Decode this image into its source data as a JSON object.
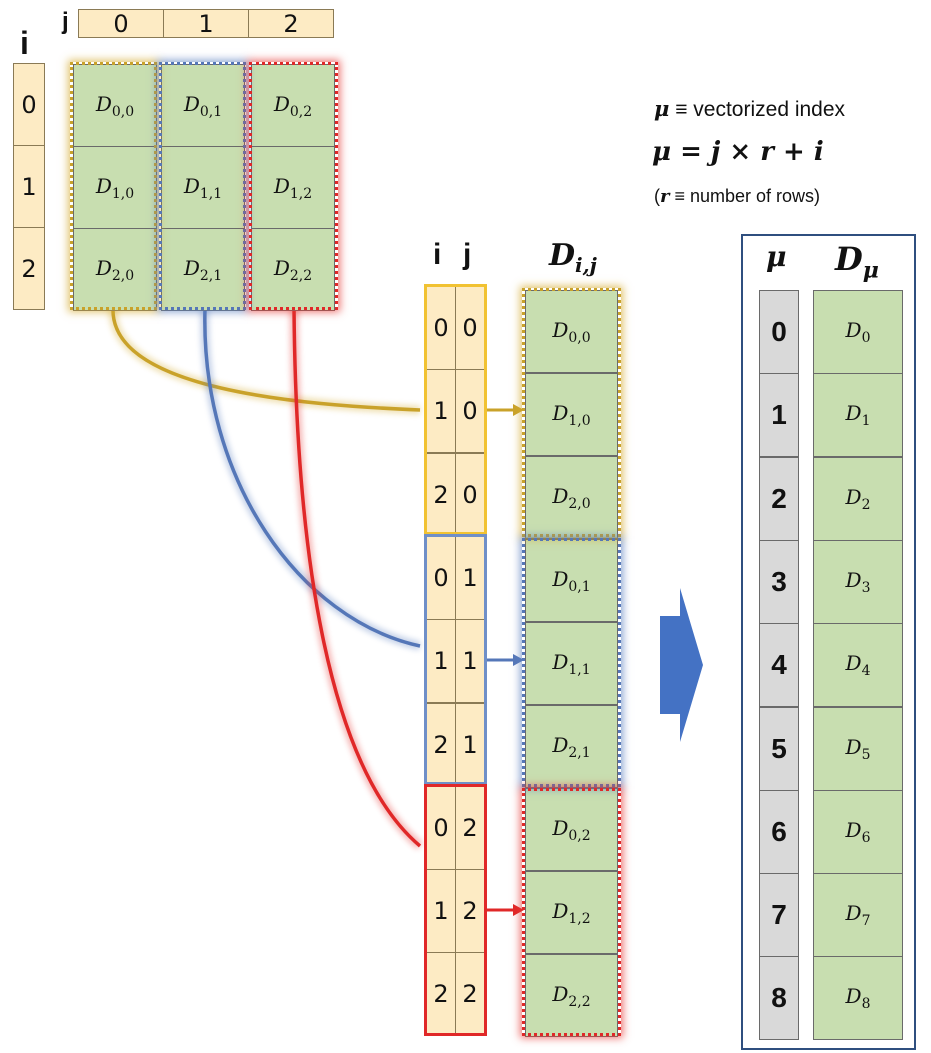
{
  "colors": {
    "yellow": "#d4aa2e",
    "blue": "#5b7fbf",
    "red": "#e53935",
    "tan": "#fdebc4",
    "green": "#c8deb0",
    "gray": "#d9d9d9",
    "arrow": "#4472c4",
    "boxBorder": "#2f4f7f"
  },
  "matrix": {
    "i_label": "i",
    "j_label": "j",
    "col_indices": [
      "0",
      "1",
      "2"
    ],
    "row_indices": [
      "0",
      "1",
      "2"
    ],
    "cells": [
      {
        "base": "D",
        "sub": "0,0"
      },
      {
        "base": "D",
        "sub": "0,1"
      },
      {
        "base": "D",
        "sub": "0,2"
      },
      {
        "base": "D",
        "sub": "1,0"
      },
      {
        "base": "D",
        "sub": "1,1"
      },
      {
        "base": "D",
        "sub": "1,2"
      },
      {
        "base": "D",
        "sub": "2,0"
      },
      {
        "base": "D",
        "sub": "2,1"
      },
      {
        "base": "D",
        "sub": "2,2"
      }
    ]
  },
  "legend": {
    "mu_symbol": "μ",
    "equiv1": " ≡ vectorized  index",
    "equation": {
      "mu": "μ",
      "eq": " = ",
      "j": "j",
      "times": " × ",
      "r": "r",
      "plus": " + ",
      "i": "i"
    },
    "rows_note": {
      "open": "(",
      "r": "r",
      "text": " ≡ number of rows)"
    }
  },
  "middle": {
    "i_header": "i",
    "j_header": "j",
    "d_header": {
      "base": "D",
      "sub": "i,j"
    },
    "pairs": [
      {
        "i": "0",
        "j": "0",
        "base": "D",
        "sub": "0,0"
      },
      {
        "i": "1",
        "j": "0",
        "base": "D",
        "sub": "1,0"
      },
      {
        "i": "2",
        "j": "0",
        "base": "D",
        "sub": "2,0"
      },
      {
        "i": "0",
        "j": "1",
        "base": "D",
        "sub": "0,1"
      },
      {
        "i": "1",
        "j": "1",
        "base": "D",
        "sub": "1,1"
      },
      {
        "i": "2",
        "j": "1",
        "base": "D",
        "sub": "2,1"
      },
      {
        "i": "0",
        "j": "2",
        "base": "D",
        "sub": "0,2"
      },
      {
        "i": "1",
        "j": "2",
        "base": "D",
        "sub": "1,2"
      },
      {
        "i": "2",
        "j": "2",
        "base": "D",
        "sub": "2,2"
      }
    ]
  },
  "vector": {
    "mu_header": "μ",
    "d_header": {
      "base": "D",
      "sub": "μ"
    },
    "rows": [
      {
        "mu": "0",
        "base": "D",
        "sub": "0"
      },
      {
        "mu": "1",
        "base": "D",
        "sub": "1"
      },
      {
        "mu": "2",
        "base": "D",
        "sub": "2"
      },
      {
        "mu": "3",
        "base": "D",
        "sub": "3"
      },
      {
        "mu": "4",
        "base": "D",
        "sub": "4"
      },
      {
        "mu": "5",
        "base": "D",
        "sub": "5"
      },
      {
        "mu": "6",
        "base": "D",
        "sub": "6"
      },
      {
        "mu": "7",
        "base": "D",
        "sub": "7"
      },
      {
        "mu": "8",
        "base": "D",
        "sub": "8"
      }
    ]
  }
}
